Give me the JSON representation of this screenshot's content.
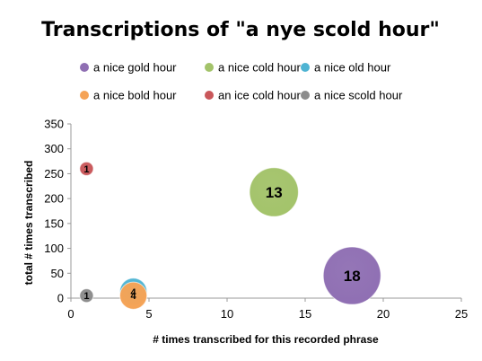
{
  "chart_data": {
    "type": "bubble",
    "title": "Transcriptions of \"a nye scold hour\"",
    "xlabel": "# times transcribed for this recorded phrase",
    "ylabel": "total # times transcribed",
    "xlim": [
      0,
      25
    ],
    "ylim": [
      0,
      350
    ],
    "xticks": [
      "0",
      "5",
      "10",
      "15",
      "20",
      "25"
    ],
    "yticks": [
      "0",
      "50",
      "100",
      "150",
      "200",
      "250",
      "300",
      "350"
    ],
    "grid": false,
    "legend_position": "top",
    "series": [
      {
        "name": "a nice gold hour",
        "color": "#8f6fb3",
        "x": 18,
        "y": 45,
        "size": 18,
        "label": "18"
      },
      {
        "name": "a nice cold hour",
        "color": "#a3c36a",
        "x": 13,
        "y": 213,
        "size": 13,
        "label": "13"
      },
      {
        "name": "a nice old hour",
        "color": "#4fb4d3",
        "x": 4,
        "y": 13,
        "size": 4,
        "label": "4"
      },
      {
        "name": "a nice bold hour",
        "color": "#f5a356",
        "x": 4,
        "y": 5,
        "size": 4,
        "label": "4"
      },
      {
        "name": "an ice cold hour",
        "color": "#c9575a",
        "x": 1,
        "y": 260,
        "size": 1,
        "label": "1"
      },
      {
        "name": "a nice scold hour",
        "color": "#8c8c8c",
        "x": 1,
        "y": 5,
        "size": 1,
        "label": "1"
      }
    ]
  }
}
